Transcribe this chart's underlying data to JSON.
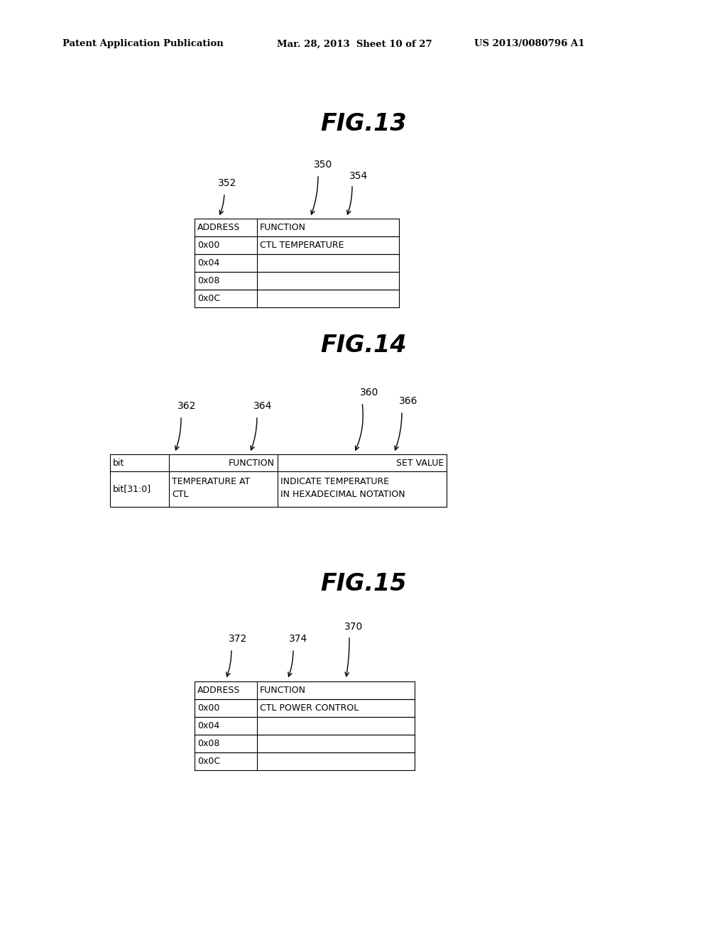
{
  "bg_color": "#ffffff",
  "header_left": "Patent Application Publication",
  "header_mid": "Mar. 28, 2013  Sheet 10 of 27",
  "header_right": "US 2013/0080796 A1",
  "fig13_title": "FIG.13",
  "fig13_label_350": "350",
  "fig13_label_352": "352",
  "fig13_label_354": "354",
  "fig13_table_header": [
    "ADDRESS",
    "FUNCTION"
  ],
  "fig13_table_rows": [
    [
      "0x00",
      "CTL TEMPERATURE"
    ],
    [
      "0x04",
      ""
    ],
    [
      "0x08",
      ""
    ],
    [
      "0x0C",
      ""
    ]
  ],
  "fig14_title": "FIG.14",
  "fig14_label_360": "360",
  "fig14_label_362": "362",
  "fig14_label_364": "364",
  "fig14_label_366": "366",
  "fig14_table_header": [
    "bit",
    "FUNCTION",
    "SET VALUE"
  ],
  "fig14_table_rows": [
    [
      "bit[31:0]",
      "TEMPERATURE AT\nCTL",
      "INDICATE TEMPERATURE\nIN HEXADECIMAL NOTATION"
    ]
  ],
  "fig15_title": "FIG.15",
  "fig15_label_370": "370",
  "fig15_label_372": "372",
  "fig15_label_374": "374",
  "fig15_table_header": [
    "ADDRESS",
    "FUNCTION"
  ],
  "fig15_table_rows": [
    [
      "0x00",
      "CTL POWER CONTROL"
    ],
    [
      "0x04",
      ""
    ],
    [
      "0x08",
      ""
    ],
    [
      "0x0C",
      ""
    ]
  ]
}
